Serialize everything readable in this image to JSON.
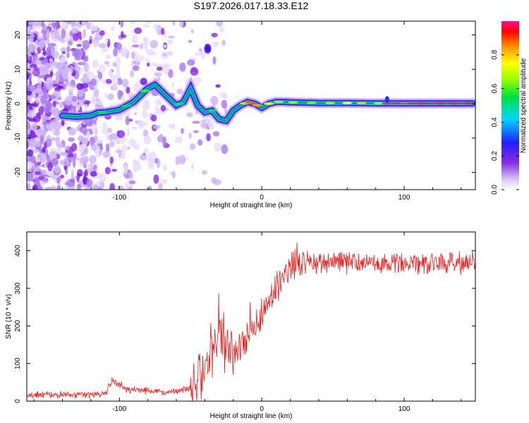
{
  "title": "S197.2026.017.18.33.E12",
  "colors": {
    "snr_line": "#ee1c1c",
    "ridge": "#00a05a",
    "axis": "#000000"
  },
  "chart_data": [
    {
      "type": "heatmap",
      "name": "spectrogram",
      "xlabel": "Height of straight line (km)",
      "ylabel": "Frequency (Hz)",
      "xlim": [
        -165,
        150
      ],
      "ylim": [
        -25,
        24
      ],
      "xticks": [
        -100,
        0,
        100
      ],
      "yticks": [
        -20,
        -10,
        0,
        10,
        20
      ],
      "ridge": {
        "x": [
          -140,
          -130,
          -120,
          -115,
          -110,
          -100,
          -90,
          -85,
          -80,
          -75,
          -70,
          -65,
          -60,
          -55,
          -50,
          -45,
          -40,
          -35,
          -30,
          -25,
          -20,
          -15,
          -10,
          -5,
          0,
          5,
          10,
          15,
          20,
          30,
          40,
          50,
          60,
          80,
          100,
          120,
          148
        ],
        "y": [
          -3.5,
          -3.8,
          -3.5,
          -2.6,
          -2.5,
          -1.8,
          0.5,
          2.5,
          4.5,
          5.5,
          3.5,
          1.5,
          -0.5,
          0.5,
          4.5,
          -0.5,
          -2.5,
          -2,
          -4.5,
          -5,
          -2,
          -0.5,
          0.5,
          0,
          -1.2,
          0,
          0.5,
          0.5,
          0.4,
          0.3,
          0.2,
          0.2,
          0.2,
          0.1,
          0.1,
          0.1,
          0.1
        ]
      },
      "colorbar": {
        "label": "Normalized spectral amplitude",
        "range": [
          0,
          1
        ],
        "ticks": [
          "0.0",
          "0.2",
          "0.4",
          "0.6",
          "0.8"
        ]
      }
    },
    {
      "type": "line",
      "name": "snr",
      "xlabel": "Height of straight line (km)",
      "ylabel": "SNR (10 * v/v)",
      "xlim": [
        -165,
        150
      ],
      "ylim": [
        0,
        450
      ],
      "xticks": [
        -100,
        0,
        100
      ],
      "yticks": [
        0,
        100,
        200,
        300,
        400
      ],
      "series": [
        {
          "name": "SNR",
          "envelope_x": [
            -165,
            -110,
            -105,
            -95,
            -60,
            -50,
            -40,
            -35,
            -30,
            -25,
            -20,
            -15,
            -10,
            -5,
            0,
            5,
            10,
            15,
            20,
            25,
            30,
            40,
            60,
            80,
            90,
            100,
            150
          ],
          "envelope_y": [
            15,
            20,
            55,
            30,
            25,
            35,
            80,
            140,
            170,
            150,
            130,
            145,
            160,
            195,
            225,
            265,
            300,
            330,
            350,
            360,
            365,
            368,
            370,
            365,
            370,
            368,
            365
          ]
        }
      ]
    }
  ]
}
